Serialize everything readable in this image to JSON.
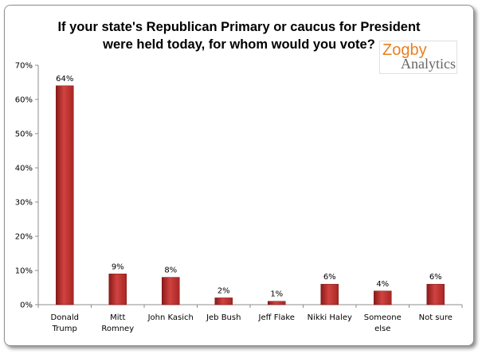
{
  "chart_data": {
    "type": "bar",
    "title_lines": [
      "If your state's Republican Primary or caucus for President",
      "were held today, for whom would you vote?"
    ],
    "categories": [
      [
        "Donald",
        "Trump"
      ],
      [
        "Mitt",
        "Romney"
      ],
      [
        "John Kasich"
      ],
      [
        "Jeb Bush"
      ],
      [
        "Jeff Flake"
      ],
      [
        "Nikki Haley"
      ],
      [
        "Someone",
        "else"
      ],
      [
        "Not sure"
      ]
    ],
    "values": [
      64,
      9,
      8,
      2,
      1,
      6,
      4,
      6
    ],
    "value_labels": [
      "64%",
      "9%",
      "8%",
      "2%",
      "1%",
      "6%",
      "4%",
      "6%"
    ],
    "ylim": [
      0,
      70
    ],
    "yticks": [
      0,
      10,
      20,
      30,
      40,
      50,
      60,
      70
    ],
    "ytick_labels": [
      "0%",
      "10%",
      "20%",
      "30%",
      "40%",
      "50%",
      "60%",
      "70%"
    ],
    "grid": false,
    "legend": "none",
    "bar_color": "#c0302e",
    "bar_color_dark": "#8a1a19",
    "bar_color_light": "#d9534f"
  },
  "logo": {
    "line1": "Zogby",
    "line2": "Analytics"
  }
}
